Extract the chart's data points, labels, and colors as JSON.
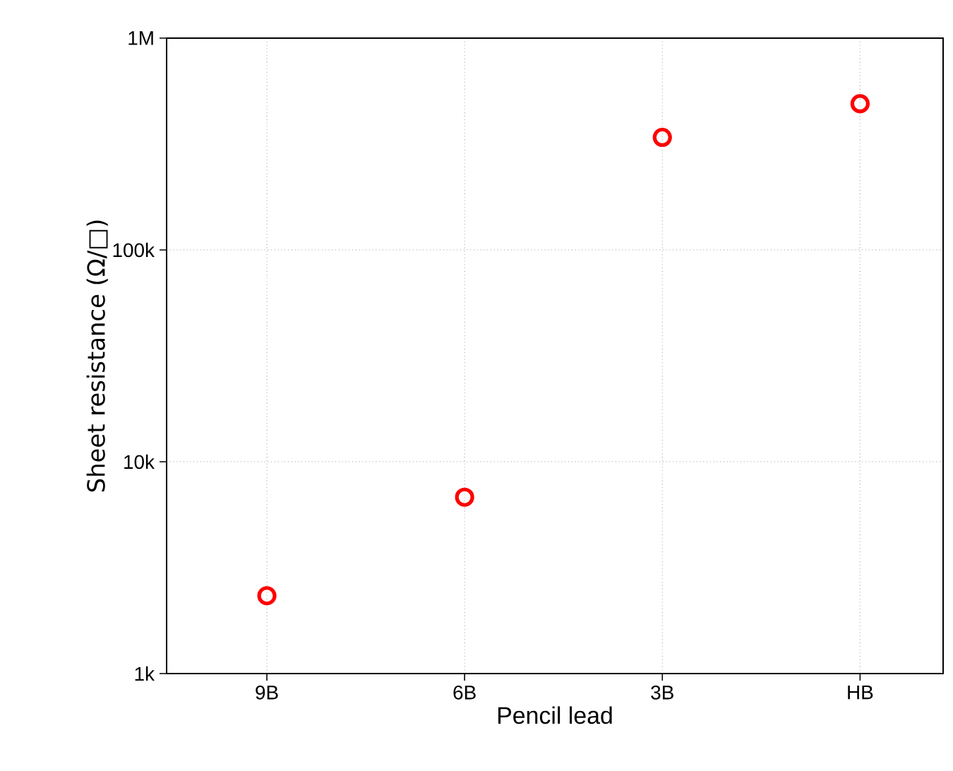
{
  "chart_data": {
    "type": "scatter",
    "xlabel": "Pencil lead",
    "ylabel": "Sheet resistance (Ω/□)",
    "categories": [
      "9B",
      "6B",
      "3B",
      "HB"
    ],
    "series": [
      {
        "color": "#ff0000",
        "values": [
          2330,
          6800,
          340000,
          490000
        ]
      }
    ],
    "log": "y",
    "ylim": [
      1000,
      1000000
    ],
    "yticks": [
      {
        "value": 1000,
        "label": "1k"
      },
      {
        "value": 10000,
        "label": "10k"
      },
      {
        "value": 100000,
        "label": "100k"
      },
      {
        "value": 1000000,
        "label": "1M"
      }
    ],
    "grid": true,
    "marker": "circle"
  }
}
